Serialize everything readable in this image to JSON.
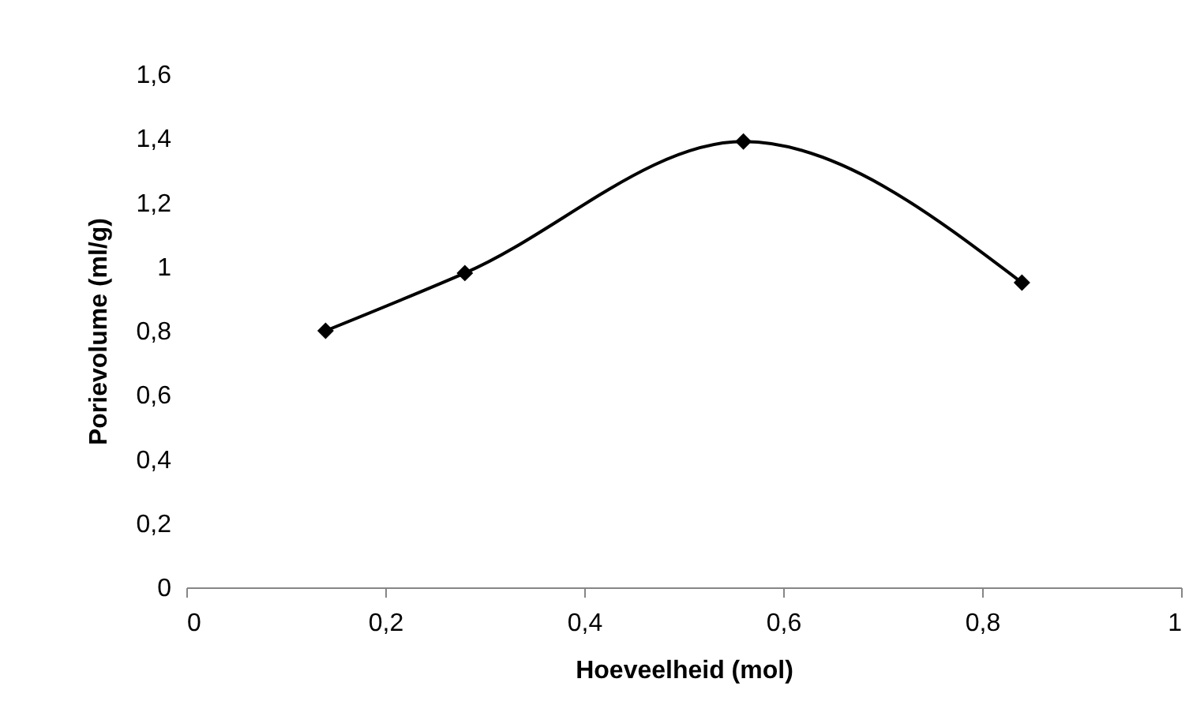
{
  "chart_data": {
    "type": "line",
    "xlabel": "Hoeveelheid (mol)",
    "ylabel": "Porievolume (ml/g)",
    "x": [
      0.14,
      0.28,
      0.56,
      0.84
    ],
    "series": [
      {
        "color": "#000000",
        "values": [
          0.8,
          0.98,
          1.39,
          0.95
        ]
      }
    ],
    "xlim": [
      0,
      1
    ],
    "xticks": [
      0,
      {
        "value": 0.2,
        "label": "0,2"
      },
      {
        "value": 0.4,
        "label": "0,4"
      },
      {
        "value": 0.6,
        "label": "0,6"
      },
      {
        "value": 0.8,
        "label": "0,8"
      },
      1
    ],
    "ylim": [
      0,
      1.6
    ],
    "yticks": [
      0,
      {
        "value": 0.2,
        "label": "0,2"
      },
      {
        "value": 0.4,
        "label": "0,4"
      },
      {
        "value": 0.6,
        "label": "0,6"
      },
      {
        "value": 0.8,
        "label": "0,8"
      },
      1,
      {
        "value": 1.2,
        "label": "1,2"
      },
      {
        "value": 1.4,
        "label": "1,4"
      },
      {
        "value": 1.6,
        "label": "1,6"
      }
    ],
    "marker": "diamond",
    "grid": false
  }
}
